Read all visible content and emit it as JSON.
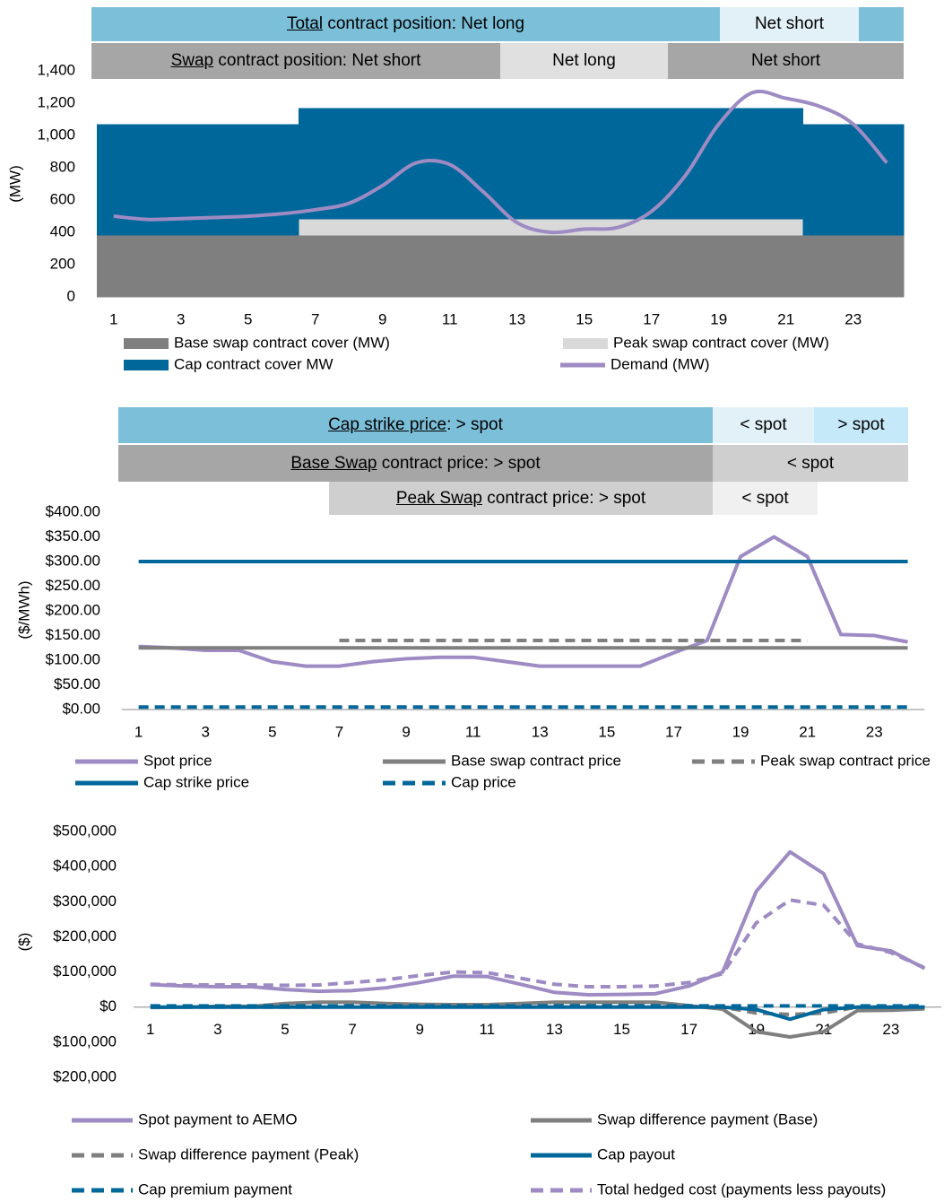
{
  "chart_data": [
    {
      "type": "combo",
      "bands": [
        [
          {
            "underlined": "Total",
            "text": " contract position: Net long",
            "color": "#7cbfd9"
          },
          {
            "text": "Net short",
            "color": "#e2f1f8"
          },
          {
            "color": "#7cbfd9"
          }
        ],
        [
          {
            "underlined": "Swap",
            "text": " contract position: Net short",
            "color": "#a6a6a6"
          },
          {
            "text": "Net long",
            "color": "#e0e0e0"
          },
          {
            "text": "Net short",
            "color": "#a6a6a6"
          }
        ]
      ],
      "y_label": "(MW)",
      "categories": [
        1,
        null,
        3,
        null,
        5,
        null,
        7,
        null,
        9,
        null,
        11,
        null,
        13,
        null,
        15,
        null,
        17,
        null,
        19,
        null,
        21,
        null,
        23,
        null
      ],
      "ylim": [
        0,
        1400
      ],
      "yticks": [
        0,
        200,
        400,
        600,
        800,
        {
          "value": 1000,
          "label": "1,000"
        },
        {
          "value": 1200,
          "label": "1,200"
        },
        {
          "value": 1400,
          "label": "1,400"
        }
      ],
      "series": [
        {
          "name": "Base swap contract cover (MW)",
          "kind": "bar",
          "color": "#7f7f7f",
          "values": [
            380,
            380,
            380,
            380,
            380,
            380,
            380,
            380,
            380,
            380,
            380,
            380,
            380,
            380,
            380,
            380,
            380,
            380,
            380,
            380,
            380,
            380,
            380,
            380
          ]
        },
        {
          "name": "Peak swap contract cover (MW)",
          "kind": "bar",
          "color": "#d9d9d9",
          "values": [
            0,
            0,
            0,
            0,
            0,
            0,
            100,
            100,
            100,
            100,
            100,
            100,
            100,
            100,
            100,
            100,
            100,
            100,
            100,
            100,
            100,
            0,
            0,
            0
          ]
        },
        {
          "name": "Cap contract cover MW",
          "kind": "bar",
          "color": "#00679a",
          "values": [
            690,
            690,
            690,
            690,
            690,
            690,
            690,
            690,
            690,
            690,
            690,
            690,
            690,
            690,
            690,
            690,
            690,
            690,
            690,
            690,
            690,
            690,
            690,
            690
          ]
        },
        {
          "name": "Demand (MW)",
          "kind": "line",
          "smooth": true,
          "color": "#9e8bc3",
          "values": [
            500,
            480,
            485,
            492,
            500,
            515,
            540,
            580,
            690,
            830,
            820,
            650,
            460,
            400,
            420,
            430,
            530,
            750,
            1070,
            1265,
            1230,
            1180,
            1070,
            830
          ]
        }
      ]
    },
    {
      "type": "line",
      "bands": [
        [
          {
            "underlined": "Cap strike price",
            "text": ": > spot",
            "color": "#7cbfd9"
          },
          {
            "text": "< spot",
            "color": "#e2f1f8"
          },
          {
            "text": "> spot",
            "color": "#c5e9f9"
          }
        ],
        [
          {
            "underlined": "Base Swap",
            "text": " contract price: > spot",
            "color": "#a6a6a6"
          },
          {
            "text": "< spot",
            "color": "#cfcfcf"
          }
        ],
        [
          {
            "underlined": "Peak Swap",
            "text": " contract price: > spot",
            "color": "#cfcfcf"
          },
          {
            "text": "< spot",
            "color": "#f0f0f0"
          }
        ]
      ],
      "y_label": "($/MWh)",
      "categories": [
        1,
        null,
        3,
        null,
        5,
        null,
        7,
        null,
        9,
        null,
        11,
        null,
        13,
        null,
        15,
        null,
        17,
        null,
        19,
        null,
        21,
        null,
        23,
        null
      ],
      "ylim": [
        0,
        400
      ],
      "yticks": [
        {
          "value": 0,
          "label": "$0.00"
        },
        {
          "value": 50,
          "label": "$50.00"
        },
        {
          "value": 100,
          "label": "$100.00"
        },
        {
          "value": 150,
          "label": "$150.00"
        },
        {
          "value": 200,
          "label": "$200.00"
        },
        {
          "value": 250,
          "label": "$250.00"
        },
        {
          "value": 300,
          "label": "$300.00"
        },
        {
          "value": 350,
          "label": "$350.00"
        },
        {
          "value": 400,
          "label": "$400.00"
        }
      ],
      "series": [
        {
          "name": "Spot price",
          "color": "#9e8bc3",
          "values": [
            128,
            125,
            120,
            120,
            97,
            88,
            88,
            97,
            103,
            106,
            106,
            97,
            88,
            88,
            88,
            88,
            115,
            140,
            310,
            350,
            310,
            152,
            150,
            137
          ]
        },
        {
          "name": "Base swap contract price",
          "color": "#7f7f7f",
          "values": [
            125,
            125,
            125,
            125,
            125,
            125,
            125,
            125,
            125,
            125,
            125,
            125,
            125,
            125,
            125,
            125,
            125,
            125,
            125,
            125,
            125,
            125,
            125,
            125
          ]
        },
        {
          "name": "Peak swap contract price",
          "color": "#7f7f7f",
          "dashed": true,
          "values": [
            null,
            null,
            null,
            null,
            null,
            null,
            140,
            140,
            140,
            140,
            140,
            140,
            140,
            140,
            140,
            140,
            140,
            140,
            140,
            140,
            140,
            null,
            null,
            null
          ]
        },
        {
          "name": "Cap strike price",
          "color": "#00679a",
          "values": [
            300,
            300,
            300,
            300,
            300,
            300,
            300,
            300,
            300,
            300,
            300,
            300,
            300,
            300,
            300,
            300,
            300,
            300,
            300,
            300,
            300,
            300,
            300,
            300
          ]
        },
        {
          "name": "Cap price",
          "color": "#00679a",
          "dashed": true,
          "values": [
            5,
            5,
            5,
            5,
            5,
            5,
            5,
            5,
            5,
            5,
            5,
            5,
            5,
            5,
            5,
            5,
            5,
            5,
            5,
            5,
            5,
            5,
            5,
            5
          ]
        }
      ]
    },
    {
      "type": "line",
      "y_label": "($)",
      "negative_tick_color": "#ff0000",
      "categories": [
        1,
        null,
        3,
        null,
        5,
        null,
        7,
        null,
        9,
        null,
        11,
        null,
        13,
        null,
        15,
        null,
        17,
        null,
        19,
        null,
        21,
        null,
        23,
        null
      ],
      "ylim": [
        -200000,
        500000
      ],
      "yticks": [
        {
          "value": -200000,
          "label": "$200,000"
        },
        {
          "value": -100000,
          "label": "$100,000"
        },
        {
          "value": 0,
          "label": "$0"
        },
        {
          "value": 100000,
          "label": "$100,000"
        },
        {
          "value": 200000,
          "label": "$200,000"
        },
        {
          "value": 300000,
          "label": "$300,000"
        },
        {
          "value": 400000,
          "label": "$400,000"
        },
        {
          "value": 500000,
          "label": "$500,000"
        }
      ],
      "series": [
        {
          "name": "Spot payment to AEMO",
          "color": "#9e8bc3",
          "values": [
            64000,
            60000,
            58000,
            58000,
            50000,
            45000,
            47000,
            55000,
            70000,
            88000,
            87000,
            65000,
            42000,
            35000,
            36000,
            38000,
            60000,
            100000,
            330000,
            442000,
            380000,
            175000,
            160000,
            110000
          ]
        },
        {
          "name": "Swap difference payment (Base)",
          "color": "#7f7f7f",
          "values": [
            -1000,
            0,
            2000,
            2000,
            10000,
            14000,
            14000,
            10000,
            8000,
            7000,
            7000,
            10000,
            14000,
            14000,
            14000,
            14000,
            4000,
            -6000,
            -70000,
            -85000,
            -70000,
            -10000,
            -9000,
            -5000
          ]
        },
        {
          "name": "Swap difference payment (Peak)",
          "color": "#7f7f7f",
          "dashed": true,
          "values": [
            0,
            0,
            0,
            0,
            0,
            0,
            5000,
            4000,
            4000,
            3000,
            3000,
            4000,
            5000,
            5000,
            5000,
            5000,
            2500,
            0,
            -17000,
            -21000,
            -17000,
            0,
            0,
            0
          ]
        },
        {
          "name": "Cap payout",
          "color": "#00679a",
          "values": [
            0,
            0,
            0,
            0,
            0,
            0,
            0,
            0,
            0,
            0,
            0,
            0,
            0,
            0,
            0,
            0,
            0,
            0,
            -7000,
            -34500,
            -7000,
            0,
            0,
            0
          ]
        },
        {
          "name": "Cap premium payment",
          "color": "#00679a",
          "dashed": true,
          "values": [
            3450,
            3450,
            3450,
            3450,
            3450,
            3450,
            3450,
            3450,
            3450,
            3450,
            3450,
            3450,
            3450,
            3450,
            3450,
            3450,
            3450,
            3450,
            3450,
            3450,
            3450,
            3450,
            3450,
            3450
          ]
        },
        {
          "name": "Total  hedged cost (payments less payouts)",
          "color": "#9e8bc3",
          "dashed": true,
          "values": [
            65000,
            63000,
            63000,
            63000,
            62000,
            63000,
            70000,
            78000,
            90000,
            100000,
            98000,
            82000,
            65000,
            58000,
            58000,
            60000,
            70000,
            95000,
            240000,
            305000,
            290000,
            180000,
            155000,
            112000
          ]
        }
      ]
    }
  ]
}
